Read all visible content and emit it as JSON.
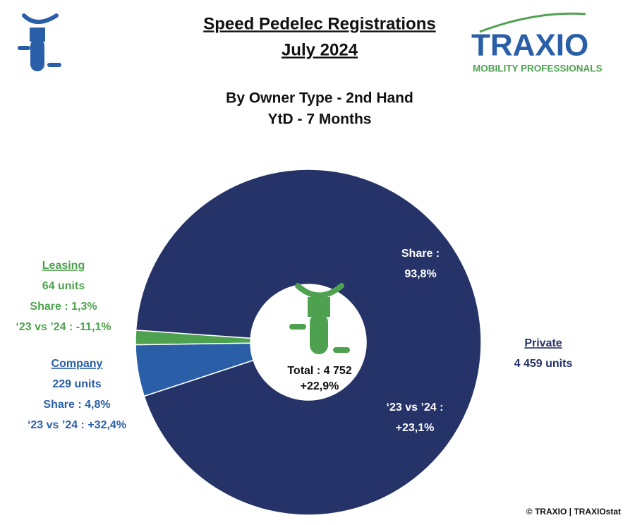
{
  "header": {
    "logo_name": "TRAXIO",
    "logo_tagline": "MOBILITY PROFESSIONALS"
  },
  "footer": "© TRAXIO | TRAXIOstat",
  "chart_data": {
    "type": "pie",
    "title": "Speed Pedelec Registrations",
    "subtitle": "July 2024",
    "heading": [
      "By Owner Type - 2nd Hand",
      "YtD - 7 Months"
    ],
    "categories": [
      "Leasing",
      "Company",
      "Private"
    ],
    "values": [
      64,
      229,
      4459
    ],
    "value_labels": [
      "64 units",
      "229 units",
      "4 459 units"
    ],
    "colors": [
      "#4ea24f",
      "#2a5fa8",
      "#253368"
    ],
    "share_labels": [
      [
        "Share : 1,3%"
      ],
      [
        "Share : 4,8%"
      ],
      [
        "Share :",
        "93,8%"
      ]
    ],
    "change_labels": [
      [
        "‘23 vs ’24 : -11,1%"
      ],
      [
        "‘23 vs ’24 : +32,4%"
      ],
      [
        "‘23 vs ’24 :",
        "+23,1%"
      ]
    ],
    "total_label": "Total : 4 752",
    "total_change": "+22,9%"
  }
}
